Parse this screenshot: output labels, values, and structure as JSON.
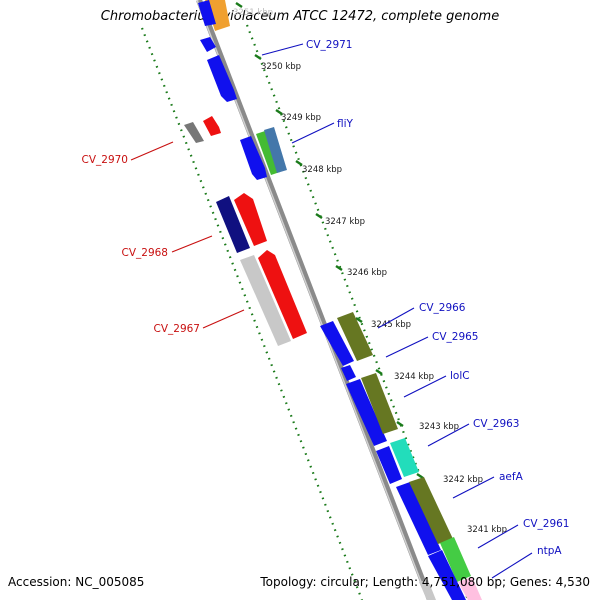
{
  "title": "Chromobacterium violaceum ATCC 12472, complete genome",
  "footer": {
    "accession": "Accession: NC_005085",
    "topology": "Topology: circular; Length: 4,751,080 bp; Genes: 4,530"
  },
  "colors": {
    "backbone": "#8a8a8a",
    "forward_label": "#1010c0",
    "reverse_label": "#c81010",
    "tick": "#1a7a1a"
  },
  "ticks": [
    {
      "label": "3251 kbp"
    },
    {
      "label": "3250 kbp"
    },
    {
      "label": "3249 kbp"
    },
    {
      "label": "3248 kbp"
    },
    {
      "label": "3247 kbp"
    },
    {
      "label": "3246 kbp"
    },
    {
      "label": "3245 kbp"
    },
    {
      "label": "3244 kbp"
    },
    {
      "label": "3243 kbp"
    },
    {
      "label": "3242 kbp"
    },
    {
      "label": "3241 kbp"
    }
  ],
  "labels": {
    "right": [
      "CV_2971",
      "fliY",
      "CV_2966",
      "CV_2965",
      "lolC",
      "CV_2963",
      "aefA",
      "CV_2961",
      "ntpA"
    ],
    "left": [
      "CV_2970",
      "CV_2968",
      "CV_2967"
    ]
  }
}
